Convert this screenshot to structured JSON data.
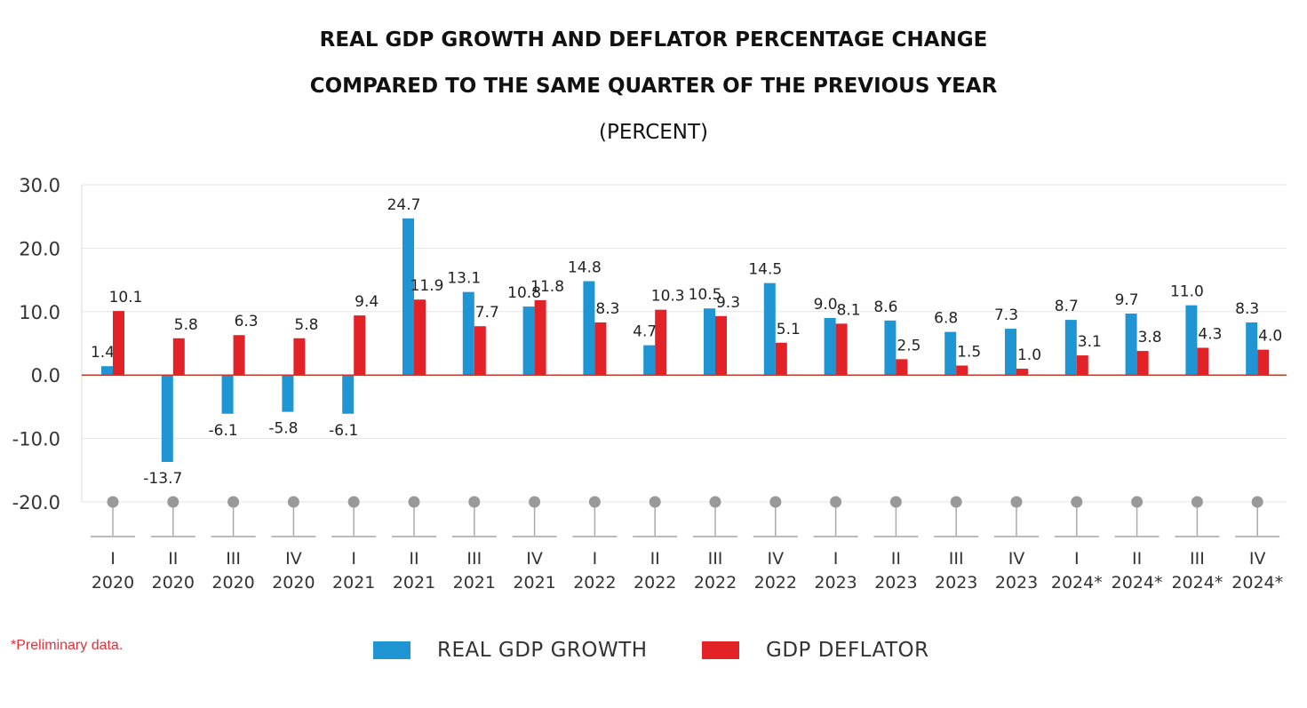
{
  "title_line1": "REAL GDP GROWTH AND DEFLATOR PERCENTAGE CHANGE",
  "title_line2": "COMPARED TO THE SAME QUARTER OF THE PREVIOUS YEAR",
  "title_line3": "(PERCENT)",
  "note": "*Preliminary data.",
  "colors": {
    "gdp": "#1f96d3",
    "deflator": "#e32228",
    "zero_line": "#c0392b",
    "grid": "#e6e6e6",
    "marker": "#999999"
  },
  "chart_data": {
    "type": "bar",
    "title": "REAL GDP GROWTH AND DEFLATOR PERCENTAGE CHANGE COMPARED TO THE SAME QUARTER OF THE PREVIOUS YEAR",
    "subtitle": "(PERCENT)",
    "ylim": [
      -20,
      30
    ],
    "yticks": [
      "30.0",
      "20.0",
      "10.0",
      "0.0",
      "-10.0",
      "-20.0"
    ],
    "grid": true,
    "legend_position": "bottom",
    "categories": [
      {
        "q": "I",
        "y": "2020"
      },
      {
        "q": "II",
        "y": "2020"
      },
      {
        "q": "III",
        "y": "2020"
      },
      {
        "q": "IV",
        "y": "2020"
      },
      {
        "q": "I",
        "y": "2021"
      },
      {
        "q": "II",
        "y": "2021"
      },
      {
        "q": "III",
        "y": "2021"
      },
      {
        "q": "IV",
        "y": "2021"
      },
      {
        "q": "I",
        "y": "2022"
      },
      {
        "q": "II",
        "y": "2022"
      },
      {
        "q": "III",
        "y": "2022"
      },
      {
        "q": "IV",
        "y": "2022"
      },
      {
        "q": "I",
        "y": "2023"
      },
      {
        "q": "II",
        "y": "2023"
      },
      {
        "q": "III",
        "y": "2023"
      },
      {
        "q": "IV",
        "y": "2023"
      },
      {
        "q": "I",
        "y": "2024*"
      },
      {
        "q": "II",
        "y": "2024*"
      },
      {
        "q": "III",
        "y": "2024*"
      },
      {
        "q": "IV",
        "y": "2024*"
      }
    ],
    "series": [
      {
        "name": "REAL GDP GROWTH",
        "color": "#1f96d3",
        "values": [
          1.4,
          -13.7,
          -6.1,
          -5.8,
          -6.1,
          24.7,
          13.1,
          10.8,
          14.8,
          4.7,
          10.5,
          14.5,
          9.0,
          8.6,
          6.8,
          7.3,
          8.7,
          9.7,
          11.0,
          8.3
        ],
        "labels": [
          "1.4",
          "-13.7",
          "-6.1",
          "-5.8",
          "-6.1",
          "24.7",
          "13.1",
          "10.8",
          "14.8",
          "4.7",
          "10.5",
          "14.5",
          "9.0",
          "8.6",
          "6.8",
          "7.3",
          "8.7",
          "9.7",
          "11.0",
          "8.3"
        ]
      },
      {
        "name": "GDP DEFLATOR",
        "color": "#e32228",
        "values": [
          10.1,
          5.8,
          6.3,
          5.8,
          9.4,
          11.9,
          7.7,
          11.8,
          8.3,
          10.3,
          9.3,
          5.1,
          8.1,
          2.5,
          1.5,
          1.0,
          3.1,
          3.8,
          4.3,
          4.0
        ],
        "labels": [
          "10.1",
          "5.8",
          "6.3",
          "5.8",
          "9.4",
          "11.9",
          "7.7",
          "11.8",
          "8.3",
          "10.3",
          "9.3",
          "5.1",
          "8.1",
          "2.5",
          "1.5",
          "1.0",
          "3.1",
          "3.8",
          "4.3",
          "4.0"
        ]
      }
    ]
  }
}
